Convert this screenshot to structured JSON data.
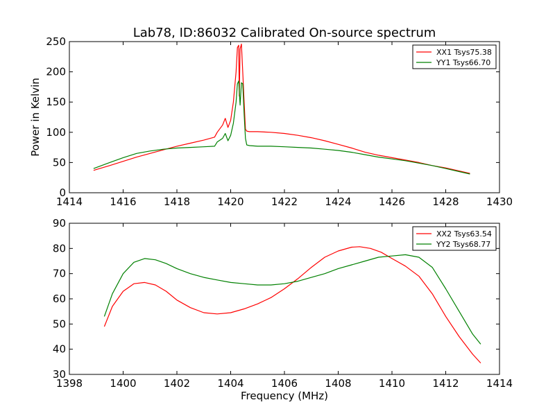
{
  "title": "Lab78, ID:86032 Calibrated On-source spectrum",
  "chart_data": [
    {
      "type": "line",
      "xlabel": "",
      "ylabel": "Power in Kelvin",
      "xlim": [
        1414,
        1430
      ],
      "ylim": [
        0,
        250
      ],
      "x_ticks": [
        1414,
        1416,
        1418,
        1420,
        1422,
        1424,
        1426,
        1428,
        1430
      ],
      "y_ticks": [
        0,
        50,
        100,
        150,
        200,
        250
      ],
      "grid": false,
      "legend_position": "top-right",
      "series": [
        {
          "name": "XX1 Tsys75.38",
          "color": "#ff0000",
          "x": [
            1414.9,
            1415.5,
            1416.0,
            1416.5,
            1417.0,
            1417.5,
            1418.0,
            1418.5,
            1419.0,
            1419.4,
            1419.5,
            1419.7,
            1419.8,
            1419.9,
            1420.0,
            1420.1,
            1420.2,
            1420.25,
            1420.3,
            1420.32,
            1420.35,
            1420.4,
            1420.45,
            1420.5,
            1420.55,
            1420.6,
            1420.7,
            1421.0,
            1421.5,
            1422.0,
            1422.5,
            1423.0,
            1423.5,
            1424.0,
            1424.5,
            1425.0,
            1425.5,
            1426.0,
            1426.5,
            1427.0,
            1427.5,
            1428.0,
            1428.5,
            1428.9
          ],
          "y": [
            37,
            45,
            52,
            59,
            65,
            71,
            77,
            82,
            87,
            92,
            100,
            112,
            123,
            108,
            120,
            150,
            200,
            240,
            244,
            160,
            238,
            246,
            200,
            150,
            105,
            102,
            101,
            101,
            100,
            98,
            95,
            91,
            86,
            80,
            74,
            67,
            62,
            58,
            54,
            50,
            45,
            41,
            36,
            32
          ]
        },
        {
          "name": "YY1 Tsys66.70",
          "color": "#008000",
          "x": [
            1414.9,
            1415.5,
            1416.0,
            1416.5,
            1417.0,
            1417.5,
            1418.0,
            1418.5,
            1419.0,
            1419.4,
            1419.5,
            1419.7,
            1419.8,
            1419.9,
            1420.0,
            1420.1,
            1420.2,
            1420.25,
            1420.3,
            1420.35,
            1420.4,
            1420.45,
            1420.5,
            1420.55,
            1420.6,
            1420.7,
            1421.0,
            1421.5,
            1422.0,
            1422.5,
            1423.0,
            1423.5,
            1424.0,
            1424.5,
            1425.0,
            1425.5,
            1426.0,
            1426.5,
            1427.0,
            1427.5,
            1428.0,
            1428.5,
            1428.9
          ],
          "y": [
            40,
            50,
            58,
            65,
            69,
            72,
            74,
            75,
            76,
            77,
            84,
            90,
            98,
            86,
            95,
            115,
            150,
            180,
            185,
            145,
            182,
            180,
            130,
            90,
            79,
            78,
            77,
            77,
            76,
            75,
            74,
            72,
            70,
            67,
            63,
            59,
            56,
            53,
            49,
            45,
            40,
            35,
            31
          ]
        }
      ]
    },
    {
      "type": "line",
      "xlabel": "Frequency (MHz)",
      "ylabel": "",
      "xlim": [
        1398,
        1414
      ],
      "ylim": [
        30,
        90
      ],
      "x_ticks": [
        1398,
        1400,
        1402,
        1404,
        1406,
        1408,
        1410,
        1412,
        1414
      ],
      "y_ticks": [
        30,
        40,
        50,
        60,
        70,
        80,
        90
      ],
      "grid": false,
      "legend_position": "top-right",
      "series": [
        {
          "name": "XX2 Tsys63.54",
          "color": "#ff0000",
          "x": [
            1399.3,
            1399.6,
            1400.0,
            1400.4,
            1400.8,
            1401.2,
            1401.6,
            1402.0,
            1402.5,
            1403.0,
            1403.5,
            1404.0,
            1404.5,
            1405.0,
            1405.5,
            1406.0,
            1406.5,
            1407.0,
            1407.5,
            1408.0,
            1408.5,
            1408.8,
            1409.2,
            1409.6,
            1410.0,
            1410.5,
            1411.0,
            1411.5,
            1412.0,
            1412.5,
            1413.0,
            1413.3
          ],
          "y": [
            49,
            57,
            63,
            66,
            66.5,
            65.5,
            63,
            59.5,
            56.5,
            54.5,
            54,
            54.5,
            56,
            58,
            60.5,
            64,
            68,
            72.5,
            76.5,
            79,
            80.5,
            80.7,
            80,
            78.5,
            76,
            73,
            69,
            62,
            53,
            45,
            38,
            34.5
          ]
        },
        {
          "name": "YY2 Tsys68.77",
          "color": "#008000",
          "x": [
            1399.3,
            1399.6,
            1400.0,
            1400.4,
            1400.8,
            1401.2,
            1401.6,
            1402.0,
            1402.5,
            1403.0,
            1403.5,
            1404.0,
            1404.5,
            1405.0,
            1405.5,
            1406.0,
            1406.5,
            1407.0,
            1407.5,
            1408.0,
            1408.5,
            1409.0,
            1409.5,
            1410.0,
            1410.5,
            1411.0,
            1411.5,
            1412.0,
            1412.5,
            1413.0,
            1413.3
          ],
          "y": [
            53,
            62,
            70,
            74.5,
            76,
            75.5,
            74,
            72,
            70,
            68.5,
            67.5,
            66.5,
            66,
            65.5,
            65.5,
            66,
            67,
            68.5,
            70,
            72,
            73.5,
            75,
            76.5,
            77,
            77.5,
            76.5,
            72.5,
            64,
            55,
            46,
            42
          ]
        }
      ]
    }
  ]
}
